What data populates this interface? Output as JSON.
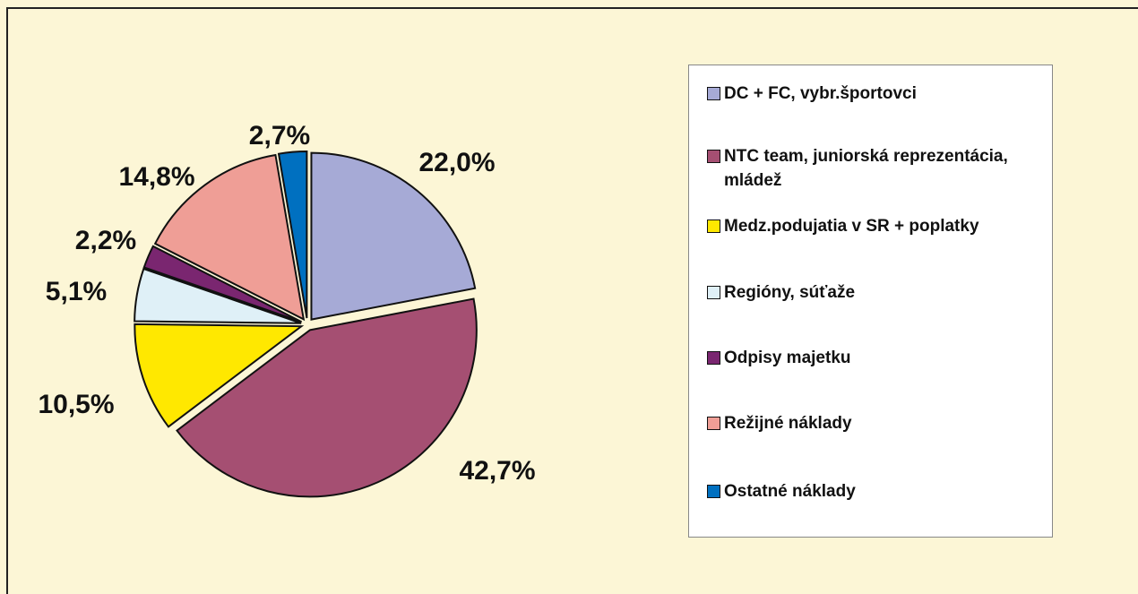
{
  "chart_data": {
    "type": "pie",
    "categories": [
      "DC + FC, vybr.športovci",
      "NTC team, juniorská reprezentácia, mládež",
      "Medz.podujatia v SR + poplatky",
      "Regióny, súťaže",
      "Odpisy majetku",
      "Režijné náklady",
      "Ostatné náklady"
    ],
    "values": [
      22.0,
      42.7,
      10.5,
      5.1,
      2.2,
      14.8,
      2.7
    ],
    "value_labels": [
      "22,0%",
      "42,7%",
      "10,5%",
      "5,1%",
      "2,2%",
      "14,8%",
      "2,7%"
    ],
    "colors": [
      "#a6aad6",
      "#a54f72",
      "#ffe800",
      "#dff0f7",
      "#7a2670",
      "#ef9e96",
      "#0070c0"
    ]
  }
}
